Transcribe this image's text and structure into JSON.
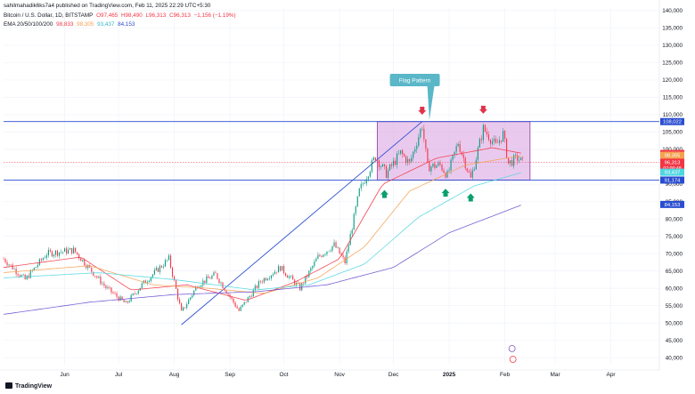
{
  "snapshot_text": "sahilmahadik6ks7a4 published on TradingView.com, Feb 11, 2025 22:29 UTC+5:30",
  "header": {
    "symbol": "Bitcoin / U.S. Dollar, 1D, BITSTAMP",
    "ohlc": [
      "O97,465",
      "H98,490",
      "L96,313",
      "C96,313",
      "−1,156 (−1.19%)"
    ],
    "ema_label": "EMA 20/50/100/200",
    "ema_values": [
      "98,833",
      "98,305",
      "93,437",
      "84,153"
    ]
  },
  "footer": {
    "brand": "TradingView"
  },
  "colors": {
    "up": "#089981",
    "down": "#f23645",
    "ema20": "#f23645",
    "ema50": "#f5a050",
    "ema100": "#4fd6e0",
    "ema200": "#6a4fd0",
    "level": "#2a4dd0",
    "flag_fill": "#d79ee0",
    "callout": "#5ab7c8"
  },
  "chart_data": {
    "type": "candlestick",
    "instrument": "BTC/USD",
    "timeframe": "1D",
    "y_axis": {
      "ticks": [
        40000,
        45000,
        50000,
        55000,
        60000,
        65000,
        70000,
        75000,
        80000,
        85000,
        90000,
        95000,
        100000,
        105000,
        110000,
        115000,
        120000,
        125000,
        130000,
        135000,
        140000
      ],
      "tick_labels": [
        "40,000",
        "45,000",
        "50,000",
        "55,000",
        "60,000",
        "65,000",
        "70,000",
        "75,000",
        "80,000",
        "85,000",
        "90,000",
        "95,000",
        "100,000",
        "105,000",
        "110,000",
        "115,000",
        "120,000",
        "125,000",
        "130,000",
        "135,000",
        "140,000"
      ],
      "range": [
        38000,
        141000
      ]
    },
    "x_axis": {
      "labels": [
        {
          "date": "2024-06-01",
          "label": "Jun"
        },
        {
          "date": "2024-07-01",
          "label": "Jul"
        },
        {
          "date": "2024-08-01",
          "label": "Aug"
        },
        {
          "date": "2024-09-01",
          "label": "Sep"
        },
        {
          "date": "2024-10-01",
          "label": "Oct"
        },
        {
          "date": "2024-11-01",
          "label": "Nov"
        },
        {
          "date": "2024-12-01",
          "label": "Dec"
        },
        {
          "date": "2025-01-01",
          "label": "2025"
        },
        {
          "date": "2025-02-01",
          "label": "Feb"
        },
        {
          "date": "2025-03-01",
          "label": "Mar"
        },
        {
          "date": "2025-04-01",
          "label": "Apr"
        }
      ],
      "range": [
        "2024-04-28",
        "2025-04-28"
      ]
    },
    "price_trajectory": [
      [
        "2024-04-28",
        68500
      ],
      [
        "2024-05-10",
        62500
      ],
      [
        "2024-05-22",
        70000
      ],
      [
        "2024-06-06",
        71000
      ],
      [
        "2024-06-24",
        60200
      ],
      [
        "2024-07-05",
        55500
      ],
      [
        "2024-07-14",
        61000
      ],
      [
        "2024-07-29",
        68500
      ],
      [
        "2024-08-05",
        53000
      ],
      [
        "2024-08-14",
        61000
      ],
      [
        "2024-08-24",
        64000
      ],
      [
        "2024-09-06",
        53500
      ],
      [
        "2024-09-18",
        62000
      ],
      [
        "2024-09-29",
        66000
      ],
      [
        "2024-10-10",
        60000
      ],
      [
        "2024-10-20",
        69000
      ],
      [
        "2024-10-29",
        72500
      ],
      [
        "2024-11-04",
        67500
      ],
      [
        "2024-11-12",
        88000
      ],
      [
        "2024-11-21",
        98000
      ],
      [
        "2024-11-27",
        93000
      ],
      [
        "2024-12-05",
        99000
      ],
      [
        "2024-12-10",
        96000
      ],
      [
        "2024-12-17",
        107000
      ],
      [
        "2024-12-20",
        95000
      ],
      [
        "2024-12-27",
        95500
      ],
      [
        "2024-12-31",
        92500
      ],
      [
        "2025-01-06",
        102000
      ],
      [
        "2025-01-13",
        91500
      ],
      [
        "2025-01-20",
        106000
      ],
      [
        "2025-01-27",
        101000
      ],
      [
        "2025-01-31",
        104500
      ],
      [
        "2025-02-03",
        96000
      ],
      [
        "2025-02-08",
        97500
      ],
      [
        "2025-02-11",
        96313
      ]
    ],
    "candle_params": {
      "start": "2024-04-28",
      "end": "2025-02-11",
      "seed": 7
    },
    "ema_series": [
      {
        "name": "EMA 20",
        "values": [
          [
            "2024-04-28",
            66000
          ],
          [
            "2024-06-10",
            69000
          ],
          [
            "2024-07-08",
            59500
          ],
          [
            "2024-08-08",
            61000
          ],
          [
            "2024-09-10",
            56500
          ],
          [
            "2024-10-08",
            62000
          ],
          [
            "2024-11-01",
            68500
          ],
          [
            "2024-11-25",
            90000
          ],
          [
            "2024-12-25",
            97500
          ],
          [
            "2025-01-25",
            100500
          ],
          [
            "2025-02-11",
            98833
          ]
        ]
      },
      {
        "name": "EMA 50",
        "values": [
          [
            "2024-04-28",
            64500
          ],
          [
            "2024-06-15",
            66500
          ],
          [
            "2024-07-20",
            61000
          ],
          [
            "2024-08-20",
            60000
          ],
          [
            "2024-09-20",
            58500
          ],
          [
            "2024-10-20",
            63000
          ],
          [
            "2024-11-15",
            72000
          ],
          [
            "2024-12-10",
            88000
          ],
          [
            "2025-01-10",
            95500
          ],
          [
            "2025-02-11",
            98305
          ]
        ]
      },
      {
        "name": "EMA 100",
        "values": [
          [
            "2024-04-28",
            63000
          ],
          [
            "2024-06-20",
            64500
          ],
          [
            "2024-08-01",
            62500
          ],
          [
            "2024-09-15",
            59500
          ],
          [
            "2024-10-15",
            61000
          ],
          [
            "2024-11-15",
            67000
          ],
          [
            "2024-12-15",
            80500
          ],
          [
            "2025-01-15",
            89500
          ],
          [
            "2025-02-11",
            93437
          ]
        ]
      },
      {
        "name": "EMA 200",
        "values": [
          [
            "2024-04-28",
            52500
          ],
          [
            "2024-06-15",
            56000
          ],
          [
            "2024-08-01",
            58200
          ],
          [
            "2024-09-15",
            59000
          ],
          [
            "2024-10-25",
            61000
          ],
          [
            "2024-12-01",
            66000
          ],
          [
            "2025-01-01",
            76000
          ],
          [
            "2025-02-11",
            84153
          ]
        ]
      }
    ],
    "levels": [
      {
        "price": 108022,
        "label": "108,022"
      },
      {
        "price": 91174,
        "label": "91,174"
      }
    ],
    "price_tags": [
      {
        "price": 98833,
        "label": "98,833",
        "color": "#f23645"
      },
      {
        "price": 98305,
        "label": "98,305",
        "color": "#f5a050"
      },
      {
        "price": 96313,
        "label": "96,313",
        "sub": "07:00:48",
        "color": "#f23645"
      },
      {
        "price": 93437,
        "label": "93,437",
        "color": "#4fd6e0"
      },
      {
        "price": 84153,
        "label": "84,153",
        "color": "#2a4dd0"
      }
    ],
    "flag_rectangle": {
      "from": "2024-11-22",
      "to": "2025-02-15",
      "top": 108022,
      "bottom": 91174
    },
    "trendline": {
      "from": [
        "2024-08-05",
        49500
      ],
      "to": [
        "2024-12-17",
        108022
      ]
    },
    "annotations": [
      {
        "text": "Flag Pattern",
        "date": "2024-12-01",
        "price": 120000,
        "pointer": [
          "2024-12-21",
          108500
        ]
      }
    ],
    "arrows_down": [
      [
        "2024-12-17",
        110500
      ],
      [
        "2025-01-20",
        110800
      ]
    ],
    "arrows_up": [
      [
        "2024-11-26",
        87800
      ],
      [
        "2024-12-30",
        88200
      ],
      [
        "2025-01-13",
        86800
      ]
    ],
    "grid": true,
    "legend": "top-left"
  }
}
